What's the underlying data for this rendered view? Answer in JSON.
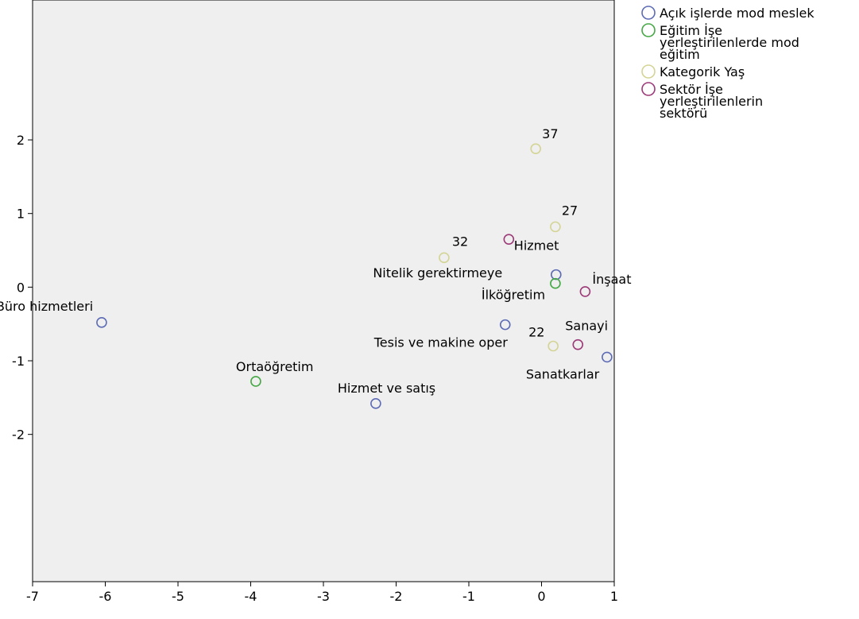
{
  "chart_data": {
    "type": "scatter",
    "title": "",
    "xlabel": "",
    "ylabel": "",
    "xlim": [
      -7,
      1
    ],
    "ylim": [
      -4,
      3.9
    ],
    "xticks": [
      "-7",
      "-6",
      "-5",
      "-4",
      "-3",
      "-2",
      "-1",
      "0",
      "1"
    ],
    "yticks": [
      "2",
      "1",
      "0",
      "-1",
      "-2"
    ],
    "grid": false,
    "legend_position": "right",
    "plot_background": "#efefef",
    "series": [
      {
        "name": "Açık işlerde mod meslek",
        "color": "#5d6bb5",
        "points": [
          {
            "x": -6.05,
            "y": -0.48,
            "label": "Büro hizmetleri"
          },
          {
            "x": -2.28,
            "y": -1.58,
            "label": "Hizmet ve satış"
          },
          {
            "x": -0.5,
            "y": -0.51,
            "label": "Tesis ve makine oper"
          },
          {
            "x": 0.2,
            "y": 0.17,
            "label": "Hizmet"
          },
          {
            "x": 0.9,
            "y": -0.95,
            "label": "Sanatkarlar"
          }
        ]
      },
      {
        "name": "Eğitim İşe yerleştirilenlerde mod eğitim",
        "color": "#45a845",
        "points": [
          {
            "x": -3.93,
            "y": -1.28,
            "label": "Ortaöğretim"
          },
          {
            "x": 0.19,
            "y": 0.05,
            "label": "İlköğretim"
          }
        ]
      },
      {
        "name": "Kategorik Yaş",
        "color": "#d4d496",
        "points": [
          {
            "x": -0.08,
            "y": 1.88,
            "label": "37"
          },
          {
            "x": 0.19,
            "y": 0.82,
            "label": "27"
          },
          {
            "x": -1.34,
            "y": 0.4,
            "label": "32"
          },
          {
            "x": 0.16,
            "y": -0.8,
            "label": "22"
          }
        ]
      },
      {
        "name": "Sektör İşe yerleştirilenlerin sektörü",
        "color": "#9c3a78",
        "points": [
          {
            "x": -0.45,
            "y": 0.65,
            "label": "Nitelik gerektirmeye"
          },
          {
            "x": 0.6,
            "y": -0.06,
            "label": "İnşaat"
          },
          {
            "x": 0.5,
            "y": -0.78,
            "label": "Sanayi"
          }
        ]
      }
    ]
  }
}
